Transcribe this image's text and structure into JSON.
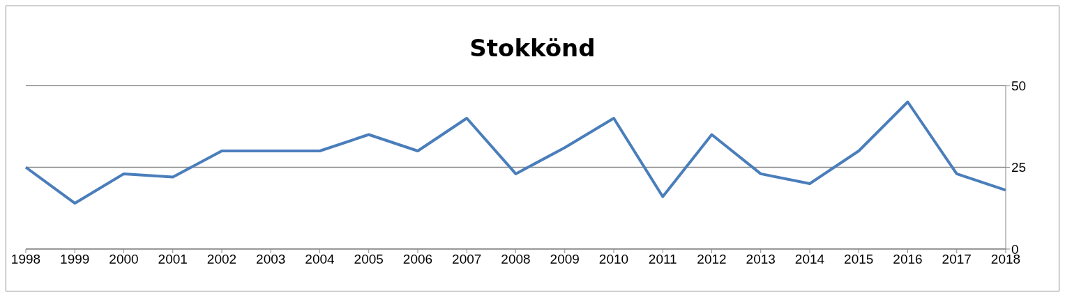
{
  "chart_data": {
    "type": "line",
    "title": "Stokkönd",
    "categories": [
      "1998",
      "1999",
      "2000",
      "2001",
      "2002",
      "2003",
      "2004",
      "2005",
      "2006",
      "2007",
      "2008",
      "2009",
      "2010",
      "2011",
      "2012",
      "2013",
      "2014",
      "2015",
      "2016",
      "2017",
      "2018"
    ],
    "series": [
      {
        "color": "#4a7ebb",
        "values": [
          25,
          14,
          23,
          22,
          30,
          30,
          30,
          35,
          30,
          40,
          23,
          31,
          40,
          16,
          35,
          23,
          20,
          30,
          45,
          23,
          18
        ]
      }
    ],
    "ylim": [
      0,
      50
    ],
    "yticks": [
      0,
      25,
      50
    ],
    "grid": "y",
    "legend": false,
    "marker": "none",
    "line_style": "solid"
  }
}
